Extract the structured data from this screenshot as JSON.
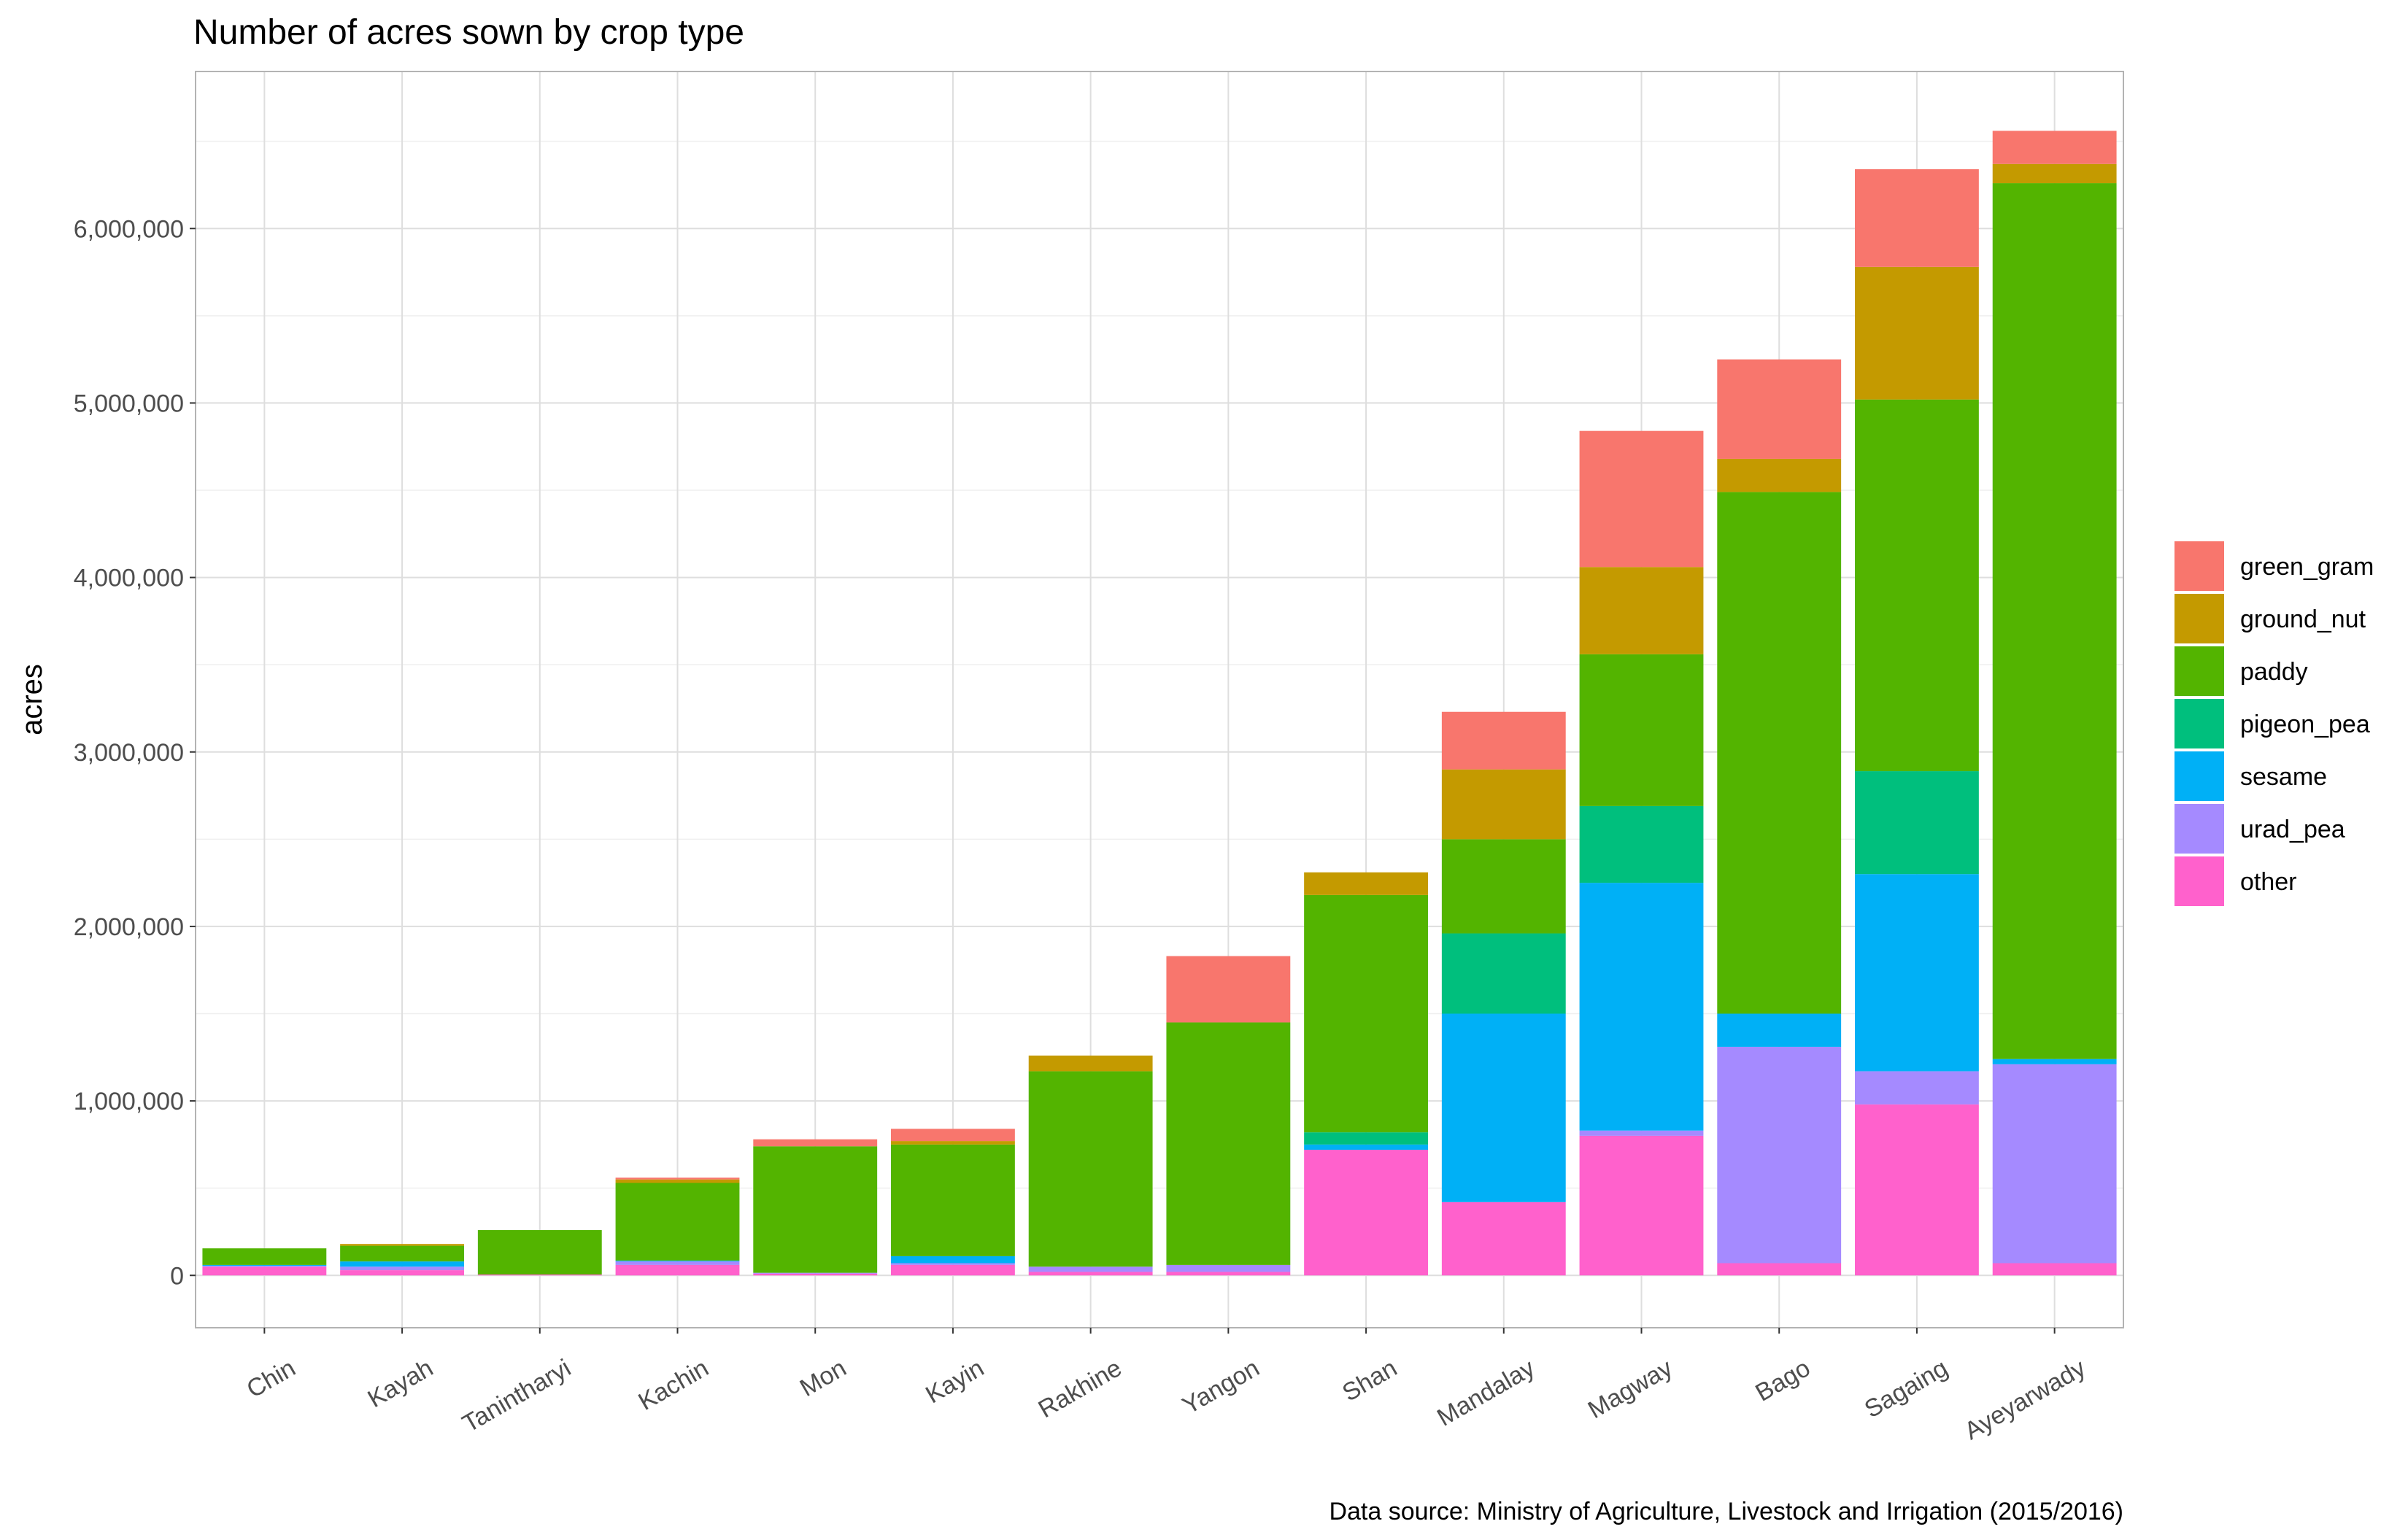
{
  "chart_data": {
    "type": "bar",
    "stacked": true,
    "title": "Number of acres sown by crop type",
    "ylabel": "acres",
    "xlabel": "",
    "caption": "Data source: Ministry of Agriculture, Livestock and Irrigation (2015/2016)",
    "ylim": [
      -300000,
      6900000
    ],
    "y_ticks": [
      0,
      1000000,
      2000000,
      3000000,
      4000000,
      5000000,
      6000000
    ],
    "y_tick_labels": [
      "0",
      "1,000,000",
      "2,000,000",
      "3,000,000",
      "4,000,000",
      "5,000,000",
      "6,000,000"
    ],
    "grid": true,
    "legend_position": "right",
    "categories": [
      "Chin",
      "Kayah",
      "Tanintharyi",
      "Kachin",
      "Mon",
      "Kayin",
      "Rakhine",
      "Yangon",
      "Shan",
      "Mandalay",
      "Magway",
      "Bago",
      "Sagaing",
      "Ayeyarwady"
    ],
    "series": [
      {
        "name": "other",
        "color": "#FF61CC",
        "values": [
          50000,
          30000,
          5000,
          60000,
          10000,
          60000,
          20000,
          20000,
          720000,
          420000,
          800000,
          70000,
          980000,
          70000
        ]
      },
      {
        "name": "urad_pea",
        "color": "#A58AFF",
        "values": [
          5000,
          20000,
          0,
          20000,
          5000,
          10000,
          30000,
          40000,
          0,
          0,
          30000,
          1240000,
          190000,
          1140000
        ]
      },
      {
        "name": "sesame",
        "color": "#00B0F6",
        "values": [
          5000,
          30000,
          0,
          5000,
          0,
          40000,
          0,
          0,
          30000,
          1080000,
          1420000,
          190000,
          1130000,
          30000
        ]
      },
      {
        "name": "pigeon_pea",
        "color": "#00BF7D",
        "values": [
          0,
          0,
          0,
          0,
          0,
          0,
          0,
          0,
          70000,
          460000,
          440000,
          0,
          590000,
          0
        ]
      },
      {
        "name": "paddy",
        "color": "#53B400",
        "values": [
          95000,
          90000,
          255000,
          445000,
          725000,
          640000,
          1120000,
          1390000,
          1360000,
          540000,
          870000,
          2990000,
          2130000,
          5020000
        ]
      },
      {
        "name": "ground_nut",
        "color": "#C49A00",
        "values": [
          0,
          10000,
          0,
          20000,
          0,
          20000,
          90000,
          0,
          130000,
          400000,
          500000,
          190000,
          760000,
          110000
        ]
      },
      {
        "name": "green_gram",
        "color": "#F8766D",
        "values": [
          0,
          0,
          0,
          10000,
          40000,
          70000,
          0,
          380000,
          0,
          330000,
          780000,
          570000,
          560000,
          190000
        ]
      }
    ],
    "legend_order": [
      "green_gram",
      "ground_nut",
      "paddy",
      "pigeon_pea",
      "sesame",
      "urad_pea",
      "other"
    ]
  }
}
